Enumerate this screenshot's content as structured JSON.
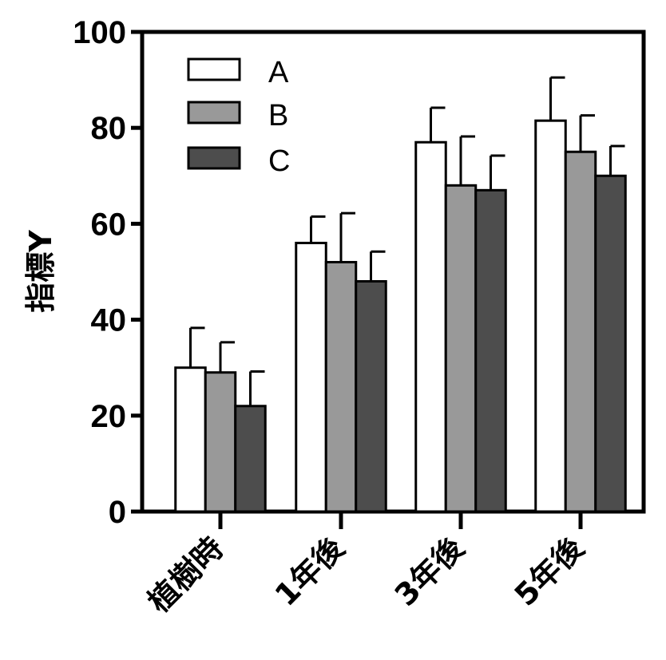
{
  "chart_data": {
    "type": "bar",
    "title": "",
    "xlabel": "",
    "ylabel": "指標Y",
    "ylim": [
      0,
      100
    ],
    "yticks": [
      0,
      20,
      40,
      60,
      80,
      100
    ],
    "categories": [
      "植樹時",
      "1年後",
      "3年後",
      "5年後"
    ],
    "series": [
      {
        "name": "A",
        "color": "#ffffff",
        "values": [
          30,
          56,
          77,
          81.5
        ],
        "errors": [
          8.3,
          5.5,
          7.2,
          9.0
        ]
      },
      {
        "name": "B",
        "color": "#999999",
        "values": [
          29,
          52,
          68,
          75
        ],
        "errors": [
          6.3,
          10.2,
          10.2,
          7.6
        ]
      },
      {
        "name": "C",
        "color": "#4d4d4d",
        "values": [
          22,
          48,
          67,
          70
        ],
        "errors": [
          7.2,
          6.2,
          7.2,
          6.2
        ]
      }
    ],
    "legend_position": "top-left"
  }
}
